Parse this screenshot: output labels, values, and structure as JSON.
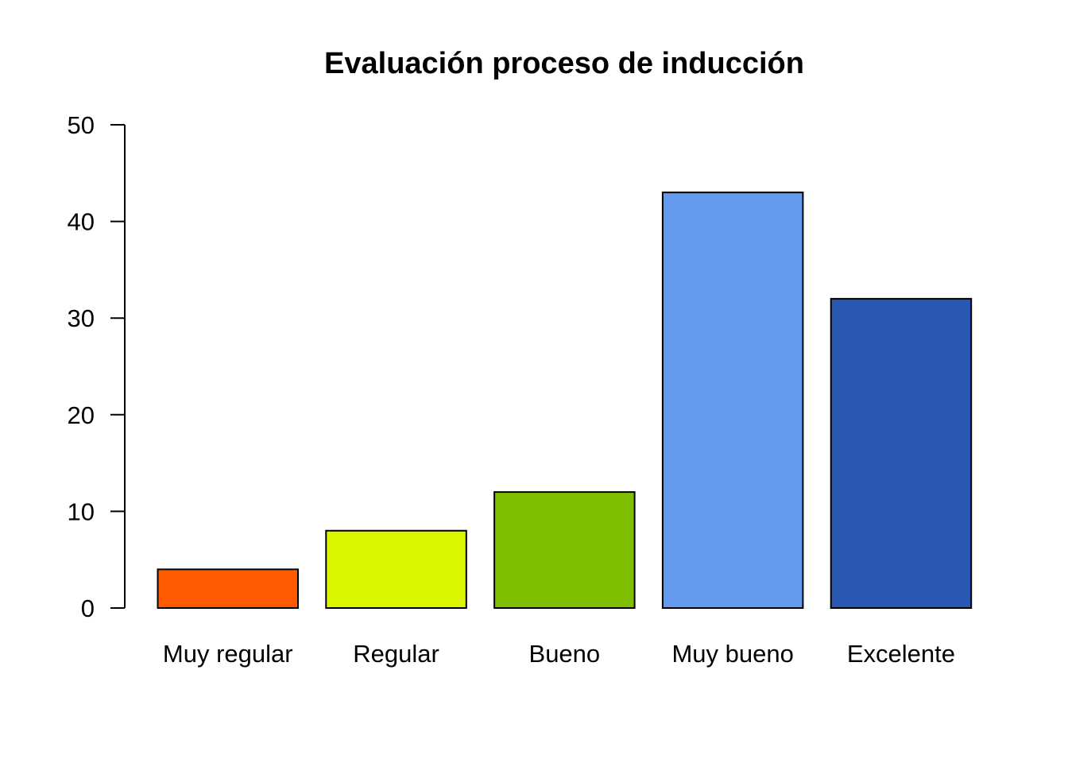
{
  "chart_data": {
    "type": "bar",
    "title": "Evaluación proceso de inducción",
    "xlabel": "",
    "ylabel": "",
    "categories": [
      "Muy regular",
      "Regular",
      "Bueno",
      "Muy bueno",
      "Excelente"
    ],
    "values": [
      4,
      8,
      12,
      43,
      32
    ],
    "colors": [
      "#FF5A00",
      "#DCF500",
      "#7FBE00",
      "#659BEE",
      "#2957B1"
    ],
    "ylim": [
      0,
      50
    ],
    "yticks": [
      0,
      10,
      20,
      30,
      40,
      50
    ],
    "ytick_labels": [
      "0",
      "10",
      "20",
      "30",
      "40",
      "50"
    ],
    "grid": false,
    "legend": "none"
  }
}
